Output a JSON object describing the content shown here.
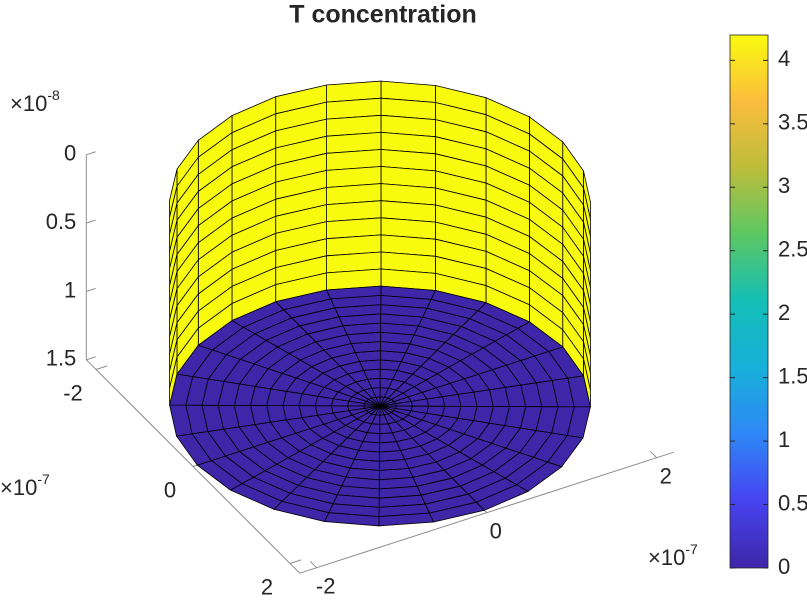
{
  "chart_data": {
    "type": "surface3d",
    "title": "T concentration",
    "xlim": [
      -2.2e-07,
      2.2e-07
    ],
    "ylim": [
      -2.2e-07,
      2.2e-07
    ],
    "zlim": [
      0,
      1.5e-08
    ],
    "z_reversed": true,
    "xticks": [
      {
        "value": -2e-07,
        "label": "-2"
      },
      0,
      {
        "value": 2e-07,
        "label": "2"
      }
    ],
    "yticks": [
      {
        "value": -2e-07,
        "label": "-2"
      },
      0,
      {
        "value": 2e-07,
        "label": "2"
      }
    ],
    "zticks": [
      0,
      {
        "value": 5e-09,
        "label": "0.5"
      },
      {
        "value": 1e-08,
        "label": "1"
      },
      {
        "value": 1.5e-08,
        "label": "1.5"
      }
    ],
    "x_exponent": {
      "base": "×10",
      "power": "-7"
    },
    "y_exponent": {
      "base": "×10",
      "power": "-7"
    },
    "z_exponent": {
      "base": "×10",
      "power": "-8"
    },
    "cylinder": {
      "radius": 2.15e-07,
      "wall_value": 4.2,
      "base_value": 0
    },
    "colorbar": {
      "clim": [
        0,
        4.2
      ],
      "ticks": [
        0,
        0.5,
        1,
        1.5,
        2,
        2.5,
        3,
        3.5,
        4
      ],
      "colormap": [
        "#3e26a8",
        "#4743f0",
        "#2e87f7",
        "#17b0d9",
        "#13beb7",
        "#5cc763",
        "#bcbd3b",
        "#fbbd3d",
        "#f9fb0e"
      ]
    }
  }
}
